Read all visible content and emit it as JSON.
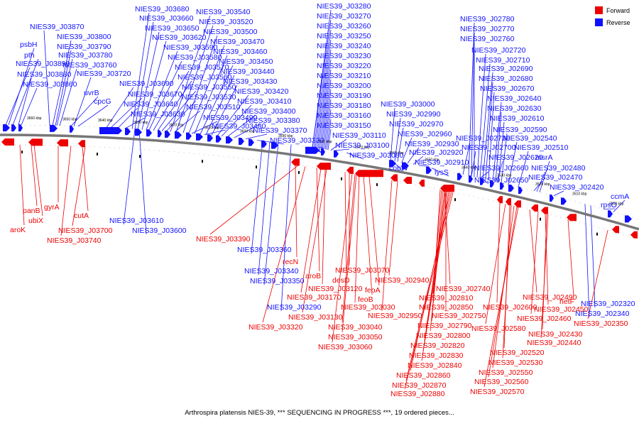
{
  "caption": "Arthrospira platensis NIES-39, *** SEQUENCING IN PROGRESS ***, 19 ordered pieces...",
  "colors": {
    "forward": "#ee0000",
    "reverse": "#1010ff",
    "backbone": "#777777"
  },
  "legend": {
    "forward": "Forward",
    "reverse": "Reverse"
  },
  "scale_ticks": [
    "3660 kbp",
    "3650 kbp",
    "3640 kbp",
    "3630 kbp",
    "3620 kbp",
    "3610 kbp",
    "3600 kbp",
    "3590 kbp",
    "3580 kbp",
    "3570 kbp",
    "3560 kbp",
    "3550 kbp",
    "3540 kbp",
    "3530 kbp",
    "3520 kbp",
    "3510 kbp",
    "3500 kbp"
  ],
  "reverse_labels": [
    "NIES39_J03870",
    "NIES39_J03800",
    "psbH",
    "NIES39_J03790",
    "pth",
    "NIES39_J03780",
    "NIES39_J03890",
    "NIES39_J03760",
    "NIES39_J03880",
    "NIES39_J03860",
    "uvrB",
    "cpcG",
    "NIES39_J03720",
    "NIES39_J03690",
    "NIES39_J03680",
    "NIES39_J03660",
    "NIES39_J03650",
    "NIES39_J03620",
    "NIES39_J03590",
    "NIES39_J03580",
    "NIES39_J03570",
    "NIES39_J03560",
    "NIES39_J03550",
    "NIES39_J03670",
    "NIES39_J03640",
    "NIES39_J03630",
    "NIES39_J03540",
    "NIES39_J03520",
    "NIES39_J03500",
    "NIES39_J03470",
    "NIES39_J03460",
    "NIES39_J03450",
    "NIES39_J03440",
    "NIES39_J03430",
    "NIES39_J03420",
    "NIES39_J03530",
    "NIES39_J03410",
    "NIES39_J03510",
    "NIES39_J03400",
    "NIES39_J03490",
    "NIES39_J03380",
    "NIES39_J03480",
    "NIES39_J03370",
    "NIES39_J03330",
    "NIES39_J03280",
    "NIES39_J03270",
    "NIES39_J03260",
    "NIES39_J03250",
    "NIES39_J03240",
    "NIES39_J03230",
    "NIES39_J03220",
    "NIES39_J03210",
    "NIES39_J03200",
    "NIES39_J03190",
    "NIES39_J03180",
    "NIES39_J03160",
    "NIES39_J03150",
    "pyrD",
    "NIES39_J03110",
    "NIES39_J03100",
    "NIES39_J03080",
    "NIES39_J03000",
    "NIES39_J02990",
    "NIES39_J02970",
    "NIES39_J02960",
    "NIES39_J02930",
    "NIES39_J02920",
    "cobW",
    "NIES39_J02910",
    "lysS",
    "NIES39_J02780",
    "NIES39_J02770",
    "NIES39_J02760",
    "NIES39_J02720",
    "NIES39_J02710",
    "NIES39_J02690",
    "NIES39_J02680",
    "NIES39_J02670",
    "NIES39_J02640",
    "NIES39_J02630",
    "NIES39_J02610",
    "NIES39_J02590",
    "NIES39_J02730",
    "NIES39_J02540",
    "NIES39_J02700",
    "NIES39_J02510",
    "NIES39_J02620",
    "msrA",
    "NIES39_J02660",
    "NIES39_J02480",
    "NIES39_J02470",
    "NIES39_J02650",
    "NIES39_J02420",
    "ccmA",
    "rpsO",
    "NIES39_J03610",
    "NIES39_J03600",
    "NIES39_J03360",
    "NIES39_J03340",
    "NIES39_J03350",
    "NIES39_J03290",
    "NIES39_J02320",
    "NIES39_J02340"
  ],
  "forward_labels": [
    "panB",
    "gyrA",
    "ubiX",
    "cutA",
    "aroK",
    "NIES39_J03700",
    "NIES39_J03740",
    "NIES39_J03390",
    "recN",
    "aroB",
    "NIES39_J03070",
    "desD",
    "NIES39_J03120",
    "NIES39_J03170",
    "feoA",
    "feoB",
    "NIES39_J03130",
    "NIES39_J03030",
    "NIES39_J03320",
    "NIES39_J03040",
    "NIES39_J03050",
    "NIES39_J03060",
    "NIES39_J02940",
    "NIES39_J02950",
    "NIES39_J02740",
    "NIES39_J02810",
    "NIES39_J02850",
    "NIES39_J02750",
    "NIES39_J02790",
    "NIES39_J02800",
    "NIES39_J02820",
    "NIES39_J02830",
    "NIES39_J02840",
    "NIES39_J02860",
    "NIES39_J02870",
    "NIES39_J02880",
    "NIES39_J02490",
    "NIES39_J02600",
    "NIES39_J02460",
    "NIES39_J02580",
    "NIES39_J02450",
    "NIES39_J02430",
    "NIES39_J02440",
    "NIES39_J02520",
    "NIES39_J02530",
    "NIES39_J02550",
    "NIES39_J02560",
    "NIES39_J02570",
    "hetF",
    "NIES39_J02350"
  ]
}
